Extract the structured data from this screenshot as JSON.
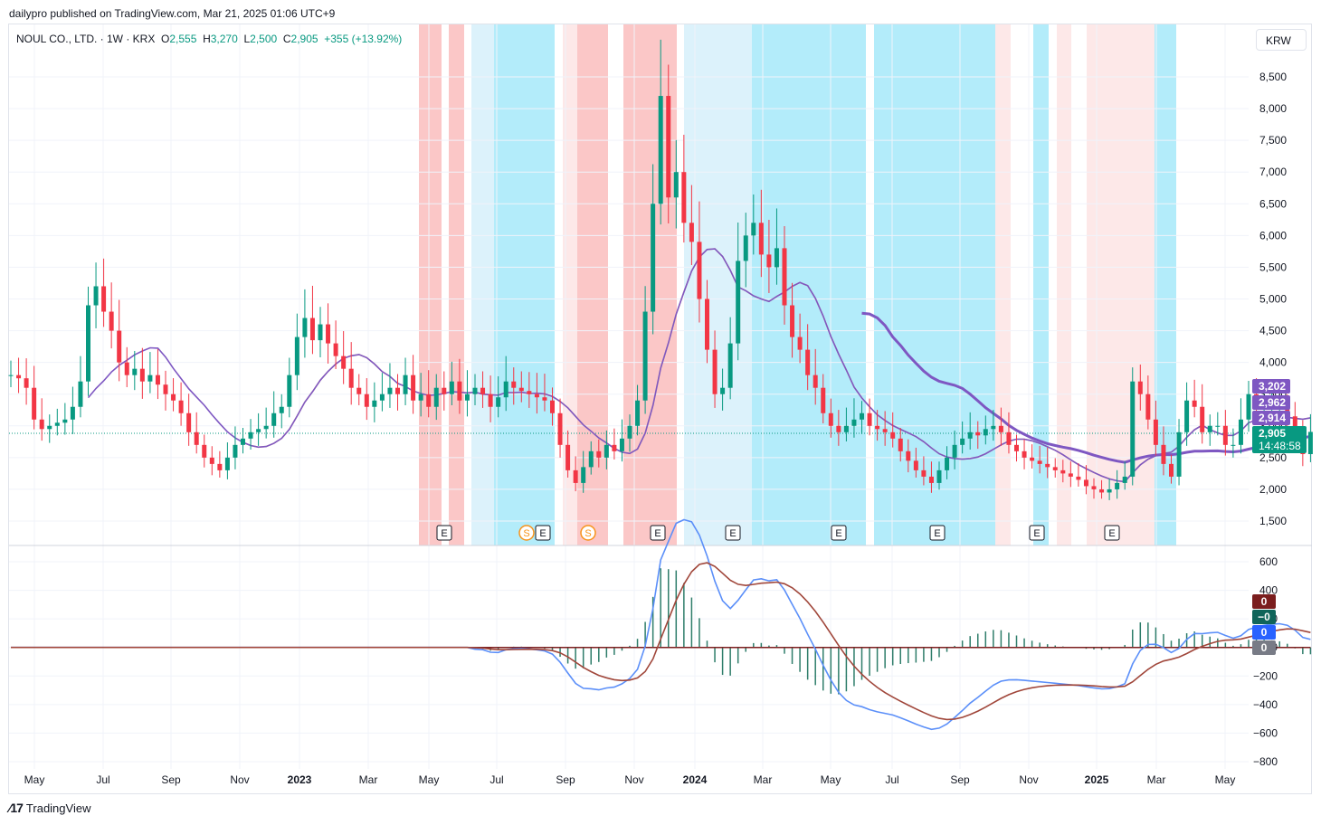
{
  "header": {
    "publish_line": "dailypro published on TradingView.com, Mar 21, 2025 01:06 UTC+9"
  },
  "legend": {
    "symbol": "NOUL CO., LTD. · 1W · KRX",
    "open_label": "O",
    "open": "2,555",
    "high_label": "H",
    "high": "3,270",
    "low_label": "L",
    "low": "2,500",
    "close_label": "C",
    "close": "2,905",
    "change": "+355 (+13.92%)"
  },
  "currency_button": "KRW",
  "footer": {
    "brand": "TradingView"
  },
  "colors": {
    "up": "#089981",
    "down": "#f23645",
    "ma_purple": "#7e57c2",
    "ma_orange": "#f7c383",
    "ma_red": "#e00000",
    "macd": "#5b8ff9",
    "signal": "#a0463a",
    "hist": "#2e7d6a",
    "bg_red": "#fbc7c7",
    "bg_red_light": "#fde8e8",
    "bg_blue": "#b3ecfa",
    "bg_blue_light": "#dcf2fb"
  },
  "chart_data": {
    "type": "candlestick",
    "symbol": "NOUL CO., LTD.",
    "interval": "1W",
    "exchange": "KRX",
    "currency": "KRW",
    "x_ticks": [
      "May",
      "Jul",
      "Sep",
      "Nov",
      "2023",
      "Mar",
      "May",
      "Jul",
      "Sep",
      "Nov",
      "2024",
      "Mar",
      "May",
      "Jul",
      "Sep",
      "Nov",
      "2025",
      "Mar",
      "May"
    ],
    "price_axis": {
      "ticks": [
        1500,
        2000,
        2500,
        3000,
        3500,
        4000,
        4500,
        5000,
        5500,
        6000,
        6500,
        7000,
        7500,
        8000,
        8500
      ],
      "tick_labels": [
        "1,500",
        "2,000",
        "2,500",
        "3,000",
        "3,500",
        "4,000",
        "4,500",
        "5,000",
        "5,500",
        "6,000",
        "6,500",
        "7,000",
        "7,500",
        "8,000",
        "8,500"
      ]
    },
    "price_labels": [
      {
        "text": "3,202",
        "value": 3202,
        "color": "#7e57c2"
      },
      {
        "text": "2,962",
        "value": 2962,
        "color": "#7e57c2"
      },
      {
        "text": "2,914",
        "value": 2914,
        "color": "#7e57c2"
      },
      {
        "text": "2,905",
        "value": 2905,
        "color": "#089981"
      }
    ],
    "countdown": "14:48:58",
    "close_series_weekly": [
      3800,
      3750,
      3600,
      3100,
      2950,
      3000,
      3050,
      3100,
      3300,
      3700,
      4900,
      5200,
      4800,
      4500,
      4000,
      3800,
      3900,
      3700,
      3800,
      3650,
      3500,
      3400,
      3200,
      2900,
      2700,
      2500,
      2400,
      2300,
      2500,
      2700,
      2800,
      2900,
      2950,
      3000,
      3200,
      3300,
      3800,
      4400,
      4700,
      4350,
      4600,
      4300,
      4100,
      3900,
      3600,
      3500,
      3300,
      3400,
      3500,
      3600,
      3500,
      3800,
      3400,
      3500,
      3300,
      3600,
      3500,
      3700,
      3400,
      3500,
      3600,
      3500,
      3300,
      3450,
      3700,
      3600,
      3550,
      3500,
      3450,
      3400,
      3200,
      2700,
      2300,
      2100,
      2350,
      2600,
      2500,
      2700,
      2600,
      2800,
      3000,
      3400,
      4800,
      6500,
      8200,
      6600,
      7000,
      6200,
      5900,
      5000,
      4200,
      3500,
      3600,
      4300,
      5600,
      6000,
      6200,
      5700,
      5500,
      5800,
      4900,
      4400,
      4200,
      3800,
      3600,
      3200,
      3000,
      2900,
      3000,
      3100,
      3200,
      3000,
      2950,
      2900,
      2800,
      2600,
      2450,
      2300,
      2200,
      2100,
      2300,
      2500,
      2700,
      2800,
      2900,
      2850,
      2950,
      3000,
      2900,
      2700,
      2600,
      2500,
      2450,
      2400,
      2350,
      2300,
      2250,
      2200,
      2150,
      2050,
      2000,
      1950,
      2000,
      2100,
      2200,
      3700,
      3500,
      3100,
      2700,
      2400,
      2200,
      2900,
      3400,
      3300,
      2900,
      3000,
      3000,
      2700,
      2700,
      3100,
      3500,
      3300,
      3300,
      3300,
      3300,
      3150,
      2850,
      2555,
      2905
    ],
    "moving_averages": [
      {
        "name": "short",
        "color": "#f7c383"
      },
      {
        "name": "mid",
        "color": "#7e57c2"
      },
      {
        "name": "long",
        "color": "#7e57c2"
      }
    ],
    "earnings_markers": [
      "E",
      "E",
      "E",
      "E",
      "E",
      "E",
      "E",
      "E",
      "E"
    ],
    "split_markers": [
      "S",
      "S"
    ],
    "macd": {
      "axis_ticks": [
        -800,
        -600,
        -400,
        -200,
        0,
        200,
        400,
        600
      ],
      "tick_labels": [
        "−800",
        "−600",
        "−400",
        "−200",
        "0",
        "200",
        "400",
        "600"
      ],
      "value_labels": [
        {
          "text": "0",
          "color": "#7b1e1e"
        },
        {
          "text": "−0",
          "color": "#10655a"
        },
        {
          "text": "0",
          "color": "#2962ff"
        },
        {
          "text": "0",
          "color": "#787b86"
        }
      ]
    },
    "grid": true
  }
}
